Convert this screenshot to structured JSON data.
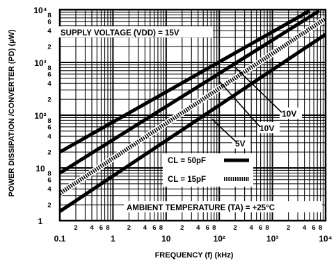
{
  "chart_data": {
    "type": "line",
    "title": "",
    "xlabel": "FREQUENCY (f) (kHz)",
    "ylabel": "POWER DISSIPATION /CONVERTER (PD) (µW)",
    "x_scale": "log",
    "y_scale": "log",
    "xlim": [
      0.1,
      10000
    ],
    "ylim": [
      1,
      10000
    ],
    "grid": true,
    "x_ticks": [
      {
        "value": 0.1,
        "label": "0.1"
      },
      {
        "value": 1,
        "label": "1"
      },
      {
        "value": 10,
        "label": "10"
      },
      {
        "value": 100,
        "label": "10²"
      },
      {
        "value": 1000,
        "label": "10³"
      },
      {
        "value": 10000,
        "label": "10⁴"
      }
    ],
    "x_minor_labels": [
      "2",
      "4",
      "6",
      "8"
    ],
    "y_ticks": [
      {
        "value": 1,
        "label": "1"
      },
      {
        "value": 10,
        "label": "10"
      },
      {
        "value": 100,
        "label": "10²"
      },
      {
        "value": 1000,
        "label": "10³"
      },
      {
        "value": 10000,
        "label": "10⁴"
      }
    ],
    "y_minor_labels": [
      "2",
      "4",
      "6",
      "8"
    ],
    "annotations": {
      "supply": "SUPPLY VOLTAGE (VDD) = 15V",
      "ambient": "AMBIENT TEMPERATURE (TA) = +25°C",
      "v10a": "10V",
      "v10b": "10V",
      "v5": "5V"
    },
    "legend": {
      "placement": "lower-right",
      "items": [
        {
          "label": "CL = 50pF",
          "style": "solid"
        },
        {
          "label": "CL = 15pF",
          "style": "hatched"
        }
      ]
    },
    "series": [
      {
        "supply": "15V",
        "load": "CL = 50pF",
        "style": "solid",
        "x": [
          0.1,
          5000
        ],
        "y": [
          20,
          9500
        ]
      },
      {
        "supply": "10V",
        "load": "CL = 50pF",
        "style": "solid",
        "x": [
          0.1,
          7600
        ],
        "y": [
          8,
          9500
        ]
      },
      {
        "supply": "10V",
        "load": "CL = 15pF",
        "style": "hatched",
        "x": [
          0.1,
          10000
        ],
        "y": [
          3.3,
          6800
        ]
      },
      {
        "supply": "5V",
        "load": "CL = 50pF",
        "style": "solid",
        "x": [
          0.1,
          10000
        ],
        "y": [
          1.5,
          3400
        ]
      }
    ]
  }
}
